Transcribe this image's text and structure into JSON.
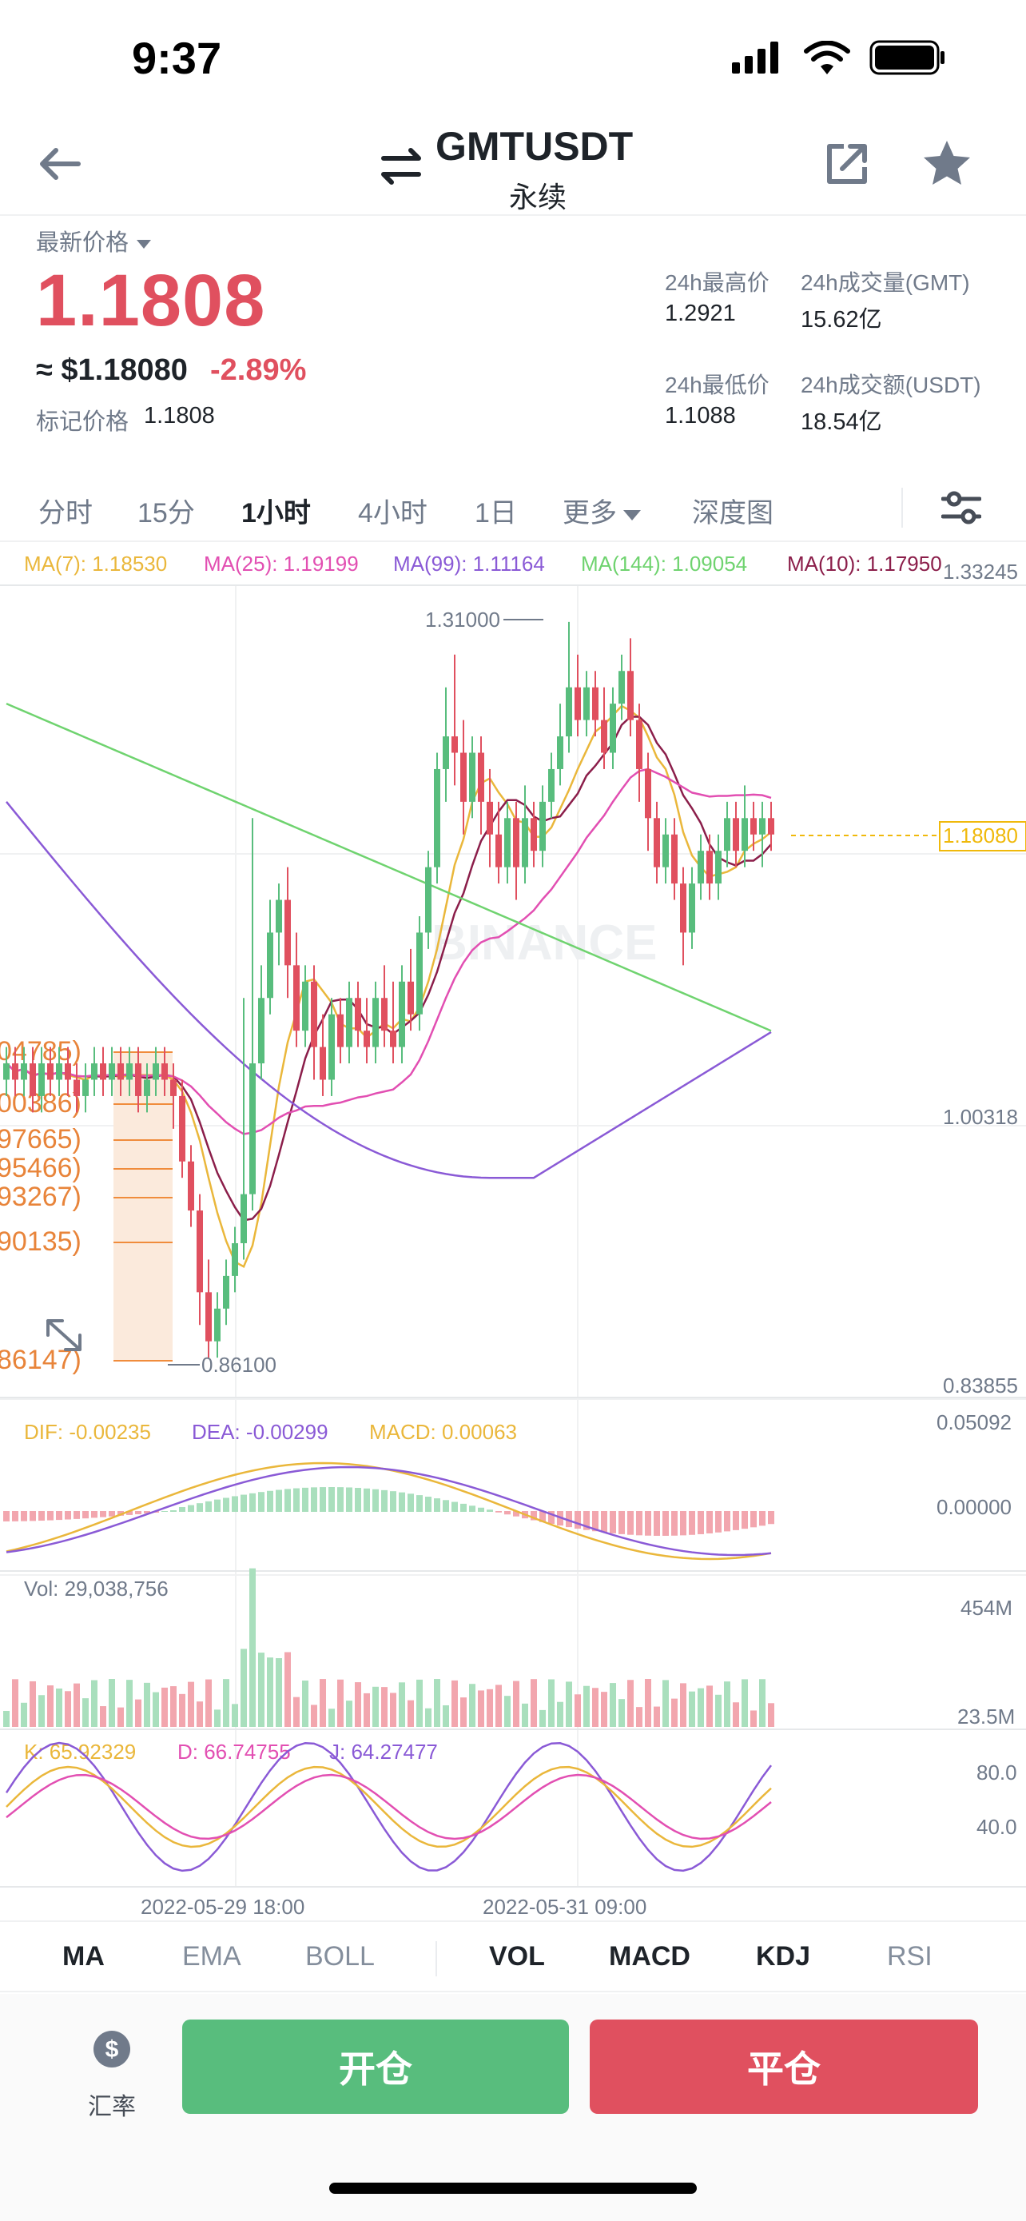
{
  "status_bar": {
    "time": "9:37"
  },
  "header": {
    "symbol": "GMTUSDT",
    "contract_type": "永续"
  },
  "price": {
    "last_label": "最新价格",
    "last_price": "1.1808",
    "usd_price": "≈ $1.18080",
    "change_pct": "-2.89%",
    "mark_label": "标记价格",
    "mark_price": "1.1808"
  },
  "stats": {
    "high_label": "24h最高价",
    "high_value": "1.2921",
    "vol_gmt_label": "24h成交量(GMT)",
    "vol_gmt_value": "15.62亿",
    "low_label": "24h最低价",
    "low_value": "1.1088",
    "vol_usdt_label": "24h成交额(USDT)",
    "vol_usdt_value": "18.54亿"
  },
  "intervals": {
    "time_share": "分时",
    "m15": "15分",
    "h1": "1小时",
    "h4": "4小时",
    "d1": "1日",
    "more": "更多",
    "depth": "深度图"
  },
  "colors": {
    "up": "#58bd7d",
    "down": "#e0505f",
    "ma7": "#eab73b",
    "ma25": "#e24fb2",
    "ma99": "#8a5ad6",
    "ma144": "#6fd36f",
    "ma10": "#8b1e4a"
  },
  "chart_data": {
    "type": "candlestick",
    "y_axis_labels": [
      "1.33245",
      "1.00318",
      "0.83855"
    ],
    "current_price_label": "1.18080",
    "high_marker": "1.31000",
    "low_marker": "0.86100",
    "watermark": "BINANCE",
    "ma_legend": {
      "ma7": "MA(7): 1.18530",
      "ma25": "MA(25): 1.19199",
      "ma99": "MA(99): 1.11164",
      "ma144": "MA(144): 1.09054",
      "ma10": "MA(10): 1.17950"
    },
    "fib_levels": [
      "04785)",
      "00386)",
      "97665)",
      "95466)",
      "93267)",
      "90135)",
      "86147)"
    ],
    "x_axis_labels": [
      "2022-05-29 18:00",
      "2022-05-31 09:00"
    ],
    "macd": {
      "dif": "DIF: -0.00235",
      "dea": "DEA: -0.00299",
      "macd": "MACD: 0.00063",
      "axis": [
        "0.05092",
        "0.00000"
      ]
    },
    "volume": {
      "label": "Vol: 29,038,756",
      "axis": [
        "454M",
        "23.5M"
      ]
    },
    "kdj": {
      "k": "K: 65.92329",
      "d": "D: 66.74755",
      "j": "J: 64.27477",
      "axis": [
        "80.0",
        "40.0"
      ]
    },
    "candles": [
      [
        1.03,
        1.04,
        1.02,
        1.05
      ],
      [
        1.04,
        1.03,
        1.02,
        1.05
      ],
      [
        1.03,
        1.04,
        1.02,
        1.05
      ],
      [
        1.04,
        1.02,
        1.01,
        1.05
      ],
      [
        1.02,
        1.04,
        1.01,
        1.05
      ],
      [
        1.04,
        1.03,
        1.02,
        1.05
      ],
      [
        1.03,
        1.04,
        1.02,
        1.05
      ],
      [
        1.04,
        1.03,
        1.02,
        1.05
      ],
      [
        1.03,
        1.02,
        1.01,
        1.04
      ],
      [
        1.02,
        1.03,
        1.01,
        1.04
      ],
      [
        1.03,
        1.04,
        1.02,
        1.05
      ],
      [
        1.04,
        1.03,
        1.02,
        1.05
      ],
      [
        1.03,
        1.04,
        1.02,
        1.05
      ],
      [
        1.04,
        1.03,
        1.02,
        1.05
      ],
      [
        1.03,
        1.04,
        1.02,
        1.05
      ],
      [
        1.04,
        1.02,
        1.01,
        1.05
      ],
      [
        1.02,
        1.03,
        1.01,
        1.04
      ],
      [
        1.03,
        1.04,
        1.02,
        1.05
      ],
      [
        1.04,
        1.03,
        1.02,
        1.05
      ],
      [
        1.03,
        1.02,
        1.0,
        1.04
      ],
      [
        1.02,
        0.98,
        0.97,
        1.03
      ],
      [
        0.98,
        0.95,
        0.94,
        0.99
      ],
      [
        0.95,
        0.9,
        0.88,
        0.96
      ],
      [
        0.9,
        0.87,
        0.86,
        0.92
      ],
      [
        0.87,
        0.89,
        0.86,
        0.9
      ],
      [
        0.89,
        0.91,
        0.88,
        0.92
      ],
      [
        0.91,
        0.93,
        0.9,
        0.94
      ],
      [
        0.93,
        0.96,
        0.92,
        1.08
      ],
      [
        0.96,
        1.04,
        0.95,
        1.19
      ],
      [
        1.04,
        1.08,
        1.03,
        1.1
      ],
      [
        1.08,
        1.12,
        1.07,
        1.14
      ],
      [
        1.12,
        1.14,
        1.1,
        1.15
      ],
      [
        1.14,
        1.1,
        1.08,
        1.16
      ],
      [
        1.1,
        1.06,
        1.05,
        1.12
      ],
      [
        1.06,
        1.09,
        1.05,
        1.1
      ],
      [
        1.09,
        1.05,
        1.03,
        1.1
      ],
      [
        1.05,
        1.03,
        1.02,
        1.07
      ],
      [
        1.03,
        1.07,
        1.02,
        1.08
      ],
      [
        1.07,
        1.05,
        1.04,
        1.08
      ],
      [
        1.05,
        1.08,
        1.04,
        1.09
      ],
      [
        1.08,
        1.06,
        1.05,
        1.09
      ],
      [
        1.06,
        1.05,
        1.04,
        1.08
      ],
      [
        1.05,
        1.08,
        1.04,
        1.09
      ],
      [
        1.08,
        1.06,
        1.05,
        1.1
      ],
      [
        1.06,
        1.05,
        1.04,
        1.09
      ],
      [
        1.05,
        1.09,
        1.04,
        1.1
      ],
      [
        1.09,
        1.07,
        1.06,
        1.11
      ],
      [
        1.07,
        1.12,
        1.06,
        1.13
      ],
      [
        1.12,
        1.16,
        1.11,
        1.17
      ],
      [
        1.16,
        1.22,
        1.15,
        1.23
      ],
      [
        1.22,
        1.24,
        1.2,
        1.27
      ],
      [
        1.24,
        1.23,
        1.21,
        1.29
      ],
      [
        1.23,
        1.2,
        1.18,
        1.25
      ],
      [
        1.2,
        1.23,
        1.19,
        1.24
      ],
      [
        1.23,
        1.2,
        1.18,
        1.24
      ],
      [
        1.2,
        1.18,
        1.16,
        1.22
      ],
      [
        1.18,
        1.16,
        1.15,
        1.2
      ],
      [
        1.16,
        1.19,
        1.15,
        1.2
      ],
      [
        1.19,
        1.16,
        1.14,
        1.2
      ],
      [
        1.16,
        1.19,
        1.15,
        1.21
      ],
      [
        1.19,
        1.17,
        1.16,
        1.2
      ],
      [
        1.17,
        1.2,
        1.16,
        1.21
      ],
      [
        1.2,
        1.22,
        1.19,
        1.23
      ],
      [
        1.22,
        1.24,
        1.21,
        1.26
      ],
      [
        1.24,
        1.27,
        1.23,
        1.31
      ],
      [
        1.27,
        1.25,
        1.24,
        1.29
      ],
      [
        1.25,
        1.27,
        1.24,
        1.28
      ],
      [
        1.27,
        1.25,
        1.24,
        1.28
      ],
      [
        1.25,
        1.23,
        1.22,
        1.27
      ],
      [
        1.23,
        1.26,
        1.22,
        1.27
      ],
      [
        1.26,
        1.28,
        1.25,
        1.29
      ],
      [
        1.28,
        1.25,
        1.24,
        1.3
      ],
      [
        1.25,
        1.22,
        1.2,
        1.26
      ],
      [
        1.22,
        1.19,
        1.17,
        1.23
      ],
      [
        1.19,
        1.16,
        1.15,
        1.2
      ],
      [
        1.16,
        1.18,
        1.15,
        1.19
      ],
      [
        1.18,
        1.15,
        1.14,
        1.19
      ],
      [
        1.15,
        1.12,
        1.1,
        1.16
      ],
      [
        1.12,
        1.15,
        1.11,
        1.16
      ],
      [
        1.15,
        1.17,
        1.14,
        1.18
      ],
      [
        1.17,
        1.15,
        1.14,
        1.18
      ],
      [
        1.15,
        1.17,
        1.14,
        1.18
      ],
      [
        1.17,
        1.19,
        1.16,
        1.2
      ],
      [
        1.19,
        1.17,
        1.16,
        1.2
      ],
      [
        1.17,
        1.19,
        1.16,
        1.21
      ],
      [
        1.19,
        1.18,
        1.17,
        1.2
      ],
      [
        1.18,
        1.19,
        1.16,
        1.2
      ],
      [
        1.19,
        1.18,
        1.17,
        1.2
      ]
    ]
  },
  "indicator_tabs": {
    "ma": "MA",
    "ema": "EMA",
    "boll": "BOLL",
    "vol": "VOL",
    "macd": "MACD",
    "kdj": "KDJ",
    "rsi": "RSI"
  },
  "actions": {
    "rate": "汇率",
    "open": "开仓",
    "close": "平仓"
  }
}
